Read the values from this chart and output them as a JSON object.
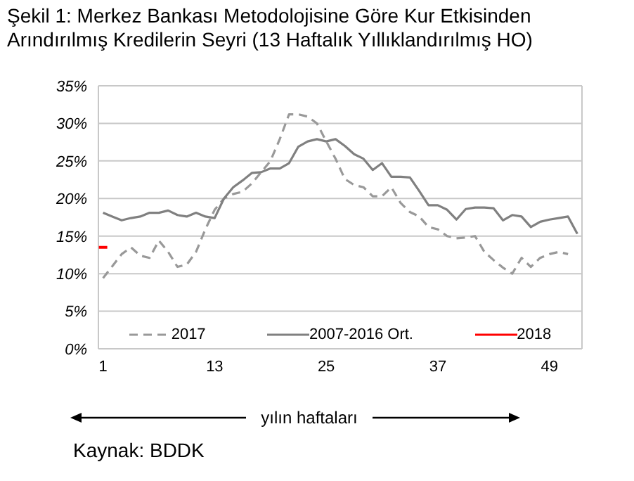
{
  "chart_data": {
    "type": "line",
    "title": "Şekil 1: Merkez Bankası Metodolojisine Göre Kur Etkisinden Arındırılmış Kredilerin Seyri (13 Haftalık Yıllıklandırılmış HO)",
    "xlabel": "yılın haftaları",
    "annotations": [
      "Kaynak: BDDK"
    ],
    "xlim": [
      0.5,
      52.5
    ],
    "xticks": [
      1,
      13,
      25,
      37,
      49
    ],
    "ylim": [
      0,
      35
    ],
    "yticks": [
      {
        "value": 0,
        "label": "0%"
      },
      {
        "value": 5,
        "label": "5%"
      },
      {
        "value": 10,
        "label": "10%"
      },
      {
        "value": 15,
        "label": "15%"
      },
      {
        "value": 20,
        "label": "20%"
      },
      {
        "value": 25,
        "label": "25%"
      },
      {
        "value": 30,
        "label": "30%"
      },
      {
        "value": 35,
        "label": "35%"
      }
    ],
    "grid": "y",
    "legend": "bottom",
    "marker": "none",
    "series": [
      {
        "name": "2017",
        "color": "#999999",
        "line_style": "dashed",
        "x": [
          1,
          2,
          3,
          4,
          5,
          6,
          7,
          8,
          9,
          10,
          11,
          12,
          13,
          14,
          15,
          16,
          17,
          18,
          19,
          20,
          21,
          22,
          23,
          24,
          25,
          26,
          27,
          28,
          29,
          30,
          31,
          32,
          33,
          34,
          35,
          36,
          37,
          38,
          39,
          40,
          41,
          42,
          43,
          44,
          45,
          46,
          47,
          48,
          49,
          50,
          51
        ],
        "values": [
          9.4,
          11,
          12.6,
          13.5,
          12.4,
          12.1,
          14.4,
          12.9,
          10.9,
          11.2,
          12.9,
          15.9,
          18.5,
          20,
          20.6,
          20.9,
          22,
          23.5,
          25,
          27.9,
          31.2,
          31.2,
          30.9,
          30,
          27.6,
          25.3,
          22.6,
          21.8,
          21.5,
          20.3,
          20.3,
          21.5,
          19.4,
          18.2,
          17.6,
          16.2,
          15.9,
          15,
          14.7,
          14.8,
          15,
          12.9,
          11.8,
          10.8,
          10,
          12.1,
          10.9,
          12.1,
          12.6,
          12.9,
          12.6
        ]
      },
      {
        "name": "2007-2016 Ort.",
        "color": "#808080",
        "line_style": "solid",
        "x": [
          1,
          2,
          3,
          4,
          5,
          6,
          7,
          8,
          9,
          10,
          11,
          12,
          13,
          14,
          15,
          16,
          17,
          18,
          19,
          20,
          21,
          22,
          23,
          24,
          25,
          26,
          27,
          28,
          29,
          30,
          31,
          32,
          33,
          34,
          35,
          36,
          37,
          38,
          39,
          40,
          41,
          42,
          43,
          44,
          45,
          46,
          47,
          48,
          49,
          50,
          51,
          52
        ],
        "values": [
          18.1,
          17.6,
          17.1,
          17.4,
          17.6,
          18.1,
          18.1,
          18.4,
          17.8,
          17.6,
          18.1,
          17.6,
          17.4,
          20,
          21.5,
          22.4,
          23.4,
          23.5,
          24,
          24,
          24.7,
          26.9,
          27.6,
          27.9,
          27.6,
          27.9,
          27,
          25.9,
          25.3,
          23.8,
          24.7,
          22.9,
          22.9,
          22.8,
          21,
          19.1,
          19.1,
          18.5,
          17.2,
          18.6,
          18.8,
          18.8,
          18.7,
          17.1,
          17.8,
          17.6,
          16.2,
          16.9,
          17.2,
          17.4,
          17.6,
          15.3
        ]
      },
      {
        "name": "2018",
        "color": "#ff0000",
        "line_style": "solid",
        "marker": "square",
        "x": [
          1
        ],
        "values": [
          13.5
        ]
      }
    ]
  }
}
